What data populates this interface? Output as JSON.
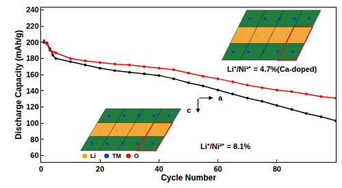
{
  "chart_data": {
    "type": "line",
    "xlabel": "Cycle Number",
    "ylabel": "Discharge Capacity (mAh/g)",
    "x": [
      1,
      2,
      3,
      4,
      5,
      10,
      15,
      20,
      25,
      30,
      35,
      40,
      45,
      50,
      55,
      60,
      65,
      70,
      75,
      80,
      85,
      90,
      95,
      100
    ],
    "series": [
      {
        "color": "#000000",
        "marker": "circle",
        "line_style": "solid",
        "values": [
          200,
          199,
          192,
          184,
          180,
          176,
          172,
          168,
          165,
          163,
          161,
          159,
          155,
          150,
          146,
          141,
          136,
          131,
          127,
          122,
          117,
          112,
          108,
          103
        ]
      },
      {
        "color": "#ff0000",
        "marker": "circle",
        "line_style": "solid",
        "values": [
          202,
          198,
          190,
          188,
          187,
          180,
          177,
          175,
          173,
          172,
          170,
          168,
          166,
          162,
          158,
          155,
          151,
          147,
          144,
          141,
          139,
          136,
          133,
          131
        ]
      }
    ],
    "xlim": [
      0,
      100
    ],
    "xticks": [
      0,
      20,
      40,
      60,
      80,
      100
    ],
    "ylim": [
      52,
      243
    ],
    "yticks": [
      60,
      80,
      100,
      120,
      140,
      160,
      180,
      200,
      220,
      240
    ],
    "grid": false,
    "annotations": [
      "Li⁺/Ni²⁺ = 4.7%(Ca-doped)",
      "Li⁺/Ni²⁺ = 8.1%",
      "a",
      "c"
    ],
    "atom_key": [
      {
        "name": "Li",
        "color": "#f5a300"
      },
      {
        "name": "TM",
        "color": "#1535e0"
      },
      {
        "name": "O",
        "color": "#e01010"
      }
    ]
  }
}
